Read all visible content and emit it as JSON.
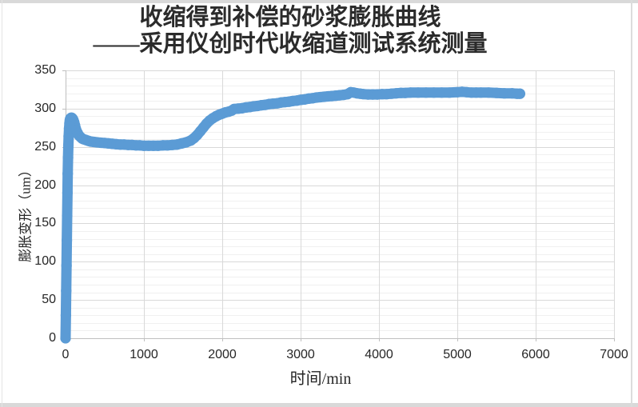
{
  "chart": {
    "title_line1": "收缩得到补偿的砂浆膨胀曲线",
    "title_line2": "——采用仪创时代收缩道测试系统测量",
    "xlabel": "时间/min",
    "ylabel": "膨胀变形（um）"
  },
  "chart_data": {
    "type": "scatter",
    "title": "收缩得到补偿的砂浆膨胀曲线 ——采用仪创时代收缩道测试系统测量",
    "xlabel": "时间/min",
    "ylabel": "膨胀变形（um）",
    "xlim": [
      0,
      7000
    ],
    "ylim": [
      0,
      350
    ],
    "x_ticks": [
      0,
      1000,
      2000,
      3000,
      4000,
      5000,
      6000,
      7000
    ],
    "y_ticks": [
      0,
      50,
      100,
      150,
      200,
      250,
      300,
      350
    ],
    "y_minor_step": 10,
    "grid": {
      "major": true,
      "minor_horizontal": true
    },
    "legend": "none",
    "colors": {
      "marker": "#5B9BD5",
      "grid_major": "#D9D9D9",
      "grid_minor": "#F0F0F0",
      "axis": "#BFBFBF",
      "tick_text": "#262626",
      "title_text": "#2B2B2B"
    },
    "series": [
      {
        "marker": "circle",
        "color": "#5B9BD5",
        "points": [
          [
            0,
            0
          ],
          [
            4,
            30
          ],
          [
            8,
            62
          ],
          [
            12,
            95
          ],
          [
            16,
            128
          ],
          [
            20,
            160
          ],
          [
            24,
            190
          ],
          [
            28,
            215
          ],
          [
            32,
            236
          ],
          [
            36,
            252
          ],
          [
            40,
            264
          ],
          [
            45,
            274
          ],
          [
            50,
            281
          ],
          [
            55,
            285
          ],
          [
            60,
            287
          ],
          [
            70,
            288
          ],
          [
            80,
            288
          ],
          [
            90,
            287
          ],
          [
            100,
            285
          ],
          [
            110,
            282
          ],
          [
            120,
            278
          ],
          [
            130,
            274
          ],
          [
            140,
            271
          ],
          [
            155,
            268
          ],
          [
            170,
            265
          ],
          [
            190,
            263
          ],
          [
            210,
            261
          ],
          [
            230,
            260
          ],
          [
            260,
            259
          ],
          [
            290,
            258
          ],
          [
            320,
            257
          ],
          [
            360,
            256.5
          ],
          [
            400,
            256
          ],
          [
            450,
            255.5
          ],
          [
            500,
            255
          ],
          [
            550,
            254.5
          ],
          [
            600,
            254
          ],
          [
            650,
            253.5
          ],
          [
            700,
            253
          ],
          [
            750,
            253
          ],
          [
            800,
            252.5
          ],
          [
            850,
            252.5
          ],
          [
            900,
            252
          ],
          [
            950,
            252
          ],
          [
            1000,
            251.5
          ],
          [
            1060,
            251.5
          ],
          [
            1120,
            251.5
          ],
          [
            1180,
            251.5
          ],
          [
            1240,
            252
          ],
          [
            1300,
            252
          ],
          [
            1360,
            252.5
          ],
          [
            1420,
            253
          ],
          [
            1480,
            254.5
          ],
          [
            1540,
            256
          ],
          [
            1600,
            258.5
          ],
          [
            1640,
            261.5
          ],
          [
            1680,
            265.5
          ],
          [
            1720,
            270.5
          ],
          [
            1760,
            275.5
          ],
          [
            1800,
            280.5
          ],
          [
            1840,
            284.5
          ],
          [
            1880,
            287.5
          ],
          [
            1920,
            290
          ],
          [
            1960,
            292
          ],
          [
            2000,
            293.5
          ],
          [
            2040,
            295
          ],
          [
            2080,
            296
          ],
          [
            2120,
            297.5
          ],
          [
            2150,
            299.5
          ],
          [
            2200,
            300
          ],
          [
            2250,
            300.5
          ],
          [
            2300,
            301.5
          ],
          [
            2350,
            302
          ],
          [
            2400,
            303
          ],
          [
            2450,
            303.5
          ],
          [
            2500,
            304.5
          ],
          [
            2550,
            305
          ],
          [
            2600,
            306
          ],
          [
            2650,
            306.5
          ],
          [
            2700,
            307
          ],
          [
            2750,
            308
          ],
          [
            2800,
            308.5
          ],
          [
            2850,
            309
          ],
          [
            2900,
            310
          ],
          [
            2950,
            310.5
          ],
          [
            3000,
            311.5
          ],
          [
            3050,
            312
          ],
          [
            3100,
            313
          ],
          [
            3150,
            313.5
          ],
          [
            3200,
            314.5
          ],
          [
            3250,
            315
          ],
          [
            3300,
            315.5
          ],
          [
            3350,
            316
          ],
          [
            3400,
            316.5
          ],
          [
            3450,
            317
          ],
          [
            3500,
            317.5
          ],
          [
            3550,
            318
          ],
          [
            3600,
            319
          ],
          [
            3640,
            321.5
          ],
          [
            3680,
            321
          ],
          [
            3720,
            320
          ],
          [
            3760,
            319.5
          ],
          [
            3800,
            319
          ],
          [
            3860,
            318.5
          ],
          [
            3920,
            318.5
          ],
          [
            3980,
            318.5
          ],
          [
            4040,
            319
          ],
          [
            4100,
            319
          ],
          [
            4160,
            319.5
          ],
          [
            4220,
            320
          ],
          [
            4280,
            320.5
          ],
          [
            4340,
            320.5
          ],
          [
            4400,
            321
          ],
          [
            4500,
            321
          ],
          [
            4600,
            321
          ],
          [
            4700,
            321
          ],
          [
            4800,
            321
          ],
          [
            4900,
            321
          ],
          [
            5000,
            321.5
          ],
          [
            5060,
            322
          ],
          [
            5120,
            321.5
          ],
          [
            5180,
            321
          ],
          [
            5240,
            321
          ],
          [
            5300,
            321
          ],
          [
            5400,
            321
          ],
          [
            5500,
            320.5
          ],
          [
            5600,
            320
          ],
          [
            5700,
            320
          ],
          [
            5760,
            319.5
          ],
          [
            5800,
            319.5
          ]
        ]
      }
    ]
  }
}
